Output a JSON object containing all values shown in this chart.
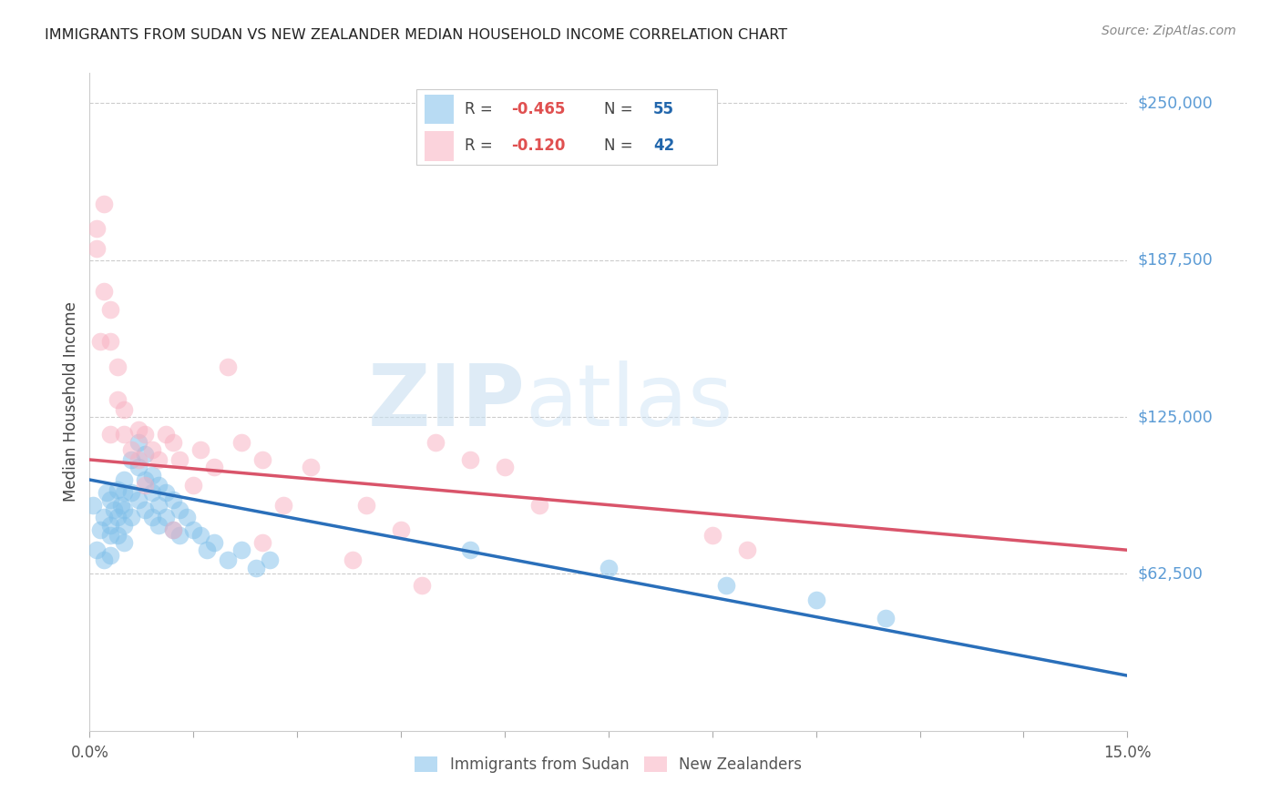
{
  "title": "IMMIGRANTS FROM SUDAN VS NEW ZEALANDER MEDIAN HOUSEHOLD INCOME CORRELATION CHART",
  "source": "Source: ZipAtlas.com",
  "ylabel": "Median Household Income",
  "y_ticks": [
    0,
    62500,
    125000,
    187500,
    250000
  ],
  "y_tick_labels": [
    "",
    "$62,500",
    "$125,000",
    "$187,500",
    "$250,000"
  ],
  "x_min": 0.0,
  "x_max": 0.15,
  "y_min": 0,
  "y_max": 262000,
  "legend_blue_label": "Immigrants from Sudan",
  "legend_pink_label": "New Zealanders",
  "blue_color": "#7fbfea",
  "pink_color": "#f8afc0",
  "blue_line_color": "#2a6fba",
  "pink_line_color": "#d9546a",
  "watermark_zip": "ZIP",
  "watermark_atlas": "atlas",
  "blue_scatter_x": [
    0.0005,
    0.001,
    0.0015,
    0.002,
    0.002,
    0.0025,
    0.003,
    0.003,
    0.003,
    0.003,
    0.0035,
    0.004,
    0.004,
    0.004,
    0.0045,
    0.005,
    0.005,
    0.005,
    0.005,
    0.005,
    0.006,
    0.006,
    0.006,
    0.007,
    0.007,
    0.007,
    0.008,
    0.008,
    0.008,
    0.009,
    0.009,
    0.009,
    0.01,
    0.01,
    0.01,
    0.011,
    0.011,
    0.012,
    0.012,
    0.013,
    0.013,
    0.014,
    0.015,
    0.016,
    0.017,
    0.018,
    0.02,
    0.022,
    0.024,
    0.026,
    0.055,
    0.075,
    0.092,
    0.105,
    0.115
  ],
  "blue_scatter_y": [
    90000,
    72000,
    80000,
    85000,
    68000,
    95000,
    92000,
    82000,
    78000,
    70000,
    88000,
    96000,
    85000,
    78000,
    90000,
    100000,
    95000,
    88000,
    82000,
    75000,
    108000,
    95000,
    85000,
    115000,
    105000,
    92000,
    110000,
    100000,
    88000,
    102000,
    95000,
    85000,
    98000,
    90000,
    82000,
    95000,
    85000,
    92000,
    80000,
    88000,
    78000,
    85000,
    80000,
    78000,
    72000,
    75000,
    68000,
    72000,
    65000,
    68000,
    72000,
    65000,
    58000,
    52000,
    45000
  ],
  "pink_scatter_x": [
    0.001,
    0.001,
    0.002,
    0.002,
    0.003,
    0.003,
    0.004,
    0.004,
    0.005,
    0.005,
    0.006,
    0.007,
    0.007,
    0.008,
    0.009,
    0.01,
    0.011,
    0.012,
    0.013,
    0.015,
    0.016,
    0.018,
    0.02,
    0.022,
    0.025,
    0.028,
    0.032,
    0.04,
    0.045,
    0.05,
    0.055,
    0.06,
    0.065,
    0.09,
    0.095,
    0.0015,
    0.003,
    0.008,
    0.012,
    0.025,
    0.038,
    0.048
  ],
  "pink_scatter_y": [
    200000,
    192000,
    175000,
    210000,
    168000,
    155000,
    145000,
    132000,
    128000,
    118000,
    112000,
    120000,
    108000,
    118000,
    112000,
    108000,
    118000,
    115000,
    108000,
    98000,
    112000,
    105000,
    145000,
    115000,
    108000,
    90000,
    105000,
    90000,
    80000,
    115000,
    108000,
    105000,
    90000,
    78000,
    72000,
    155000,
    118000,
    98000,
    80000,
    75000,
    68000,
    58000
  ]
}
